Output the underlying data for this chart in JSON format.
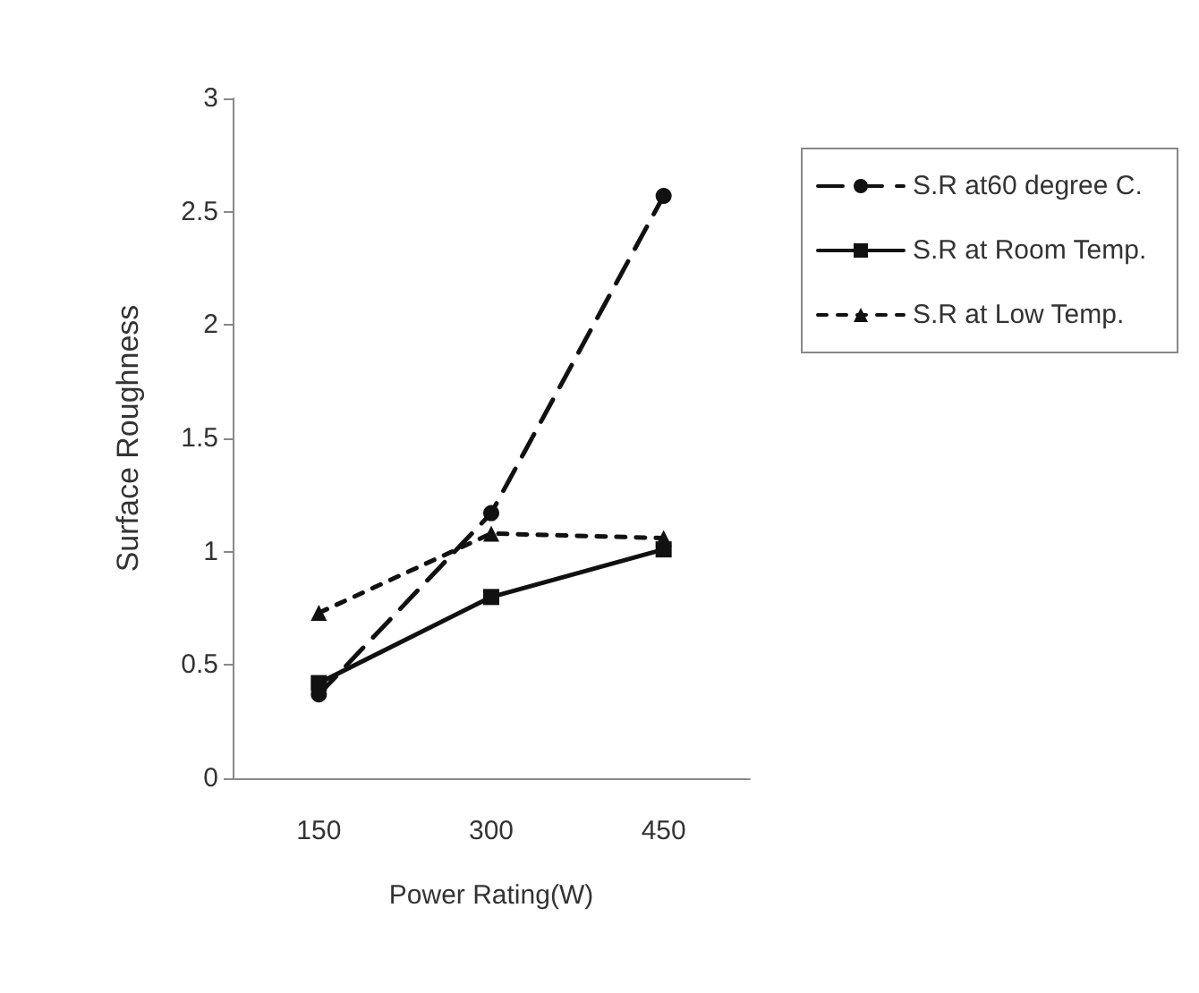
{
  "chart_data": {
    "type": "line",
    "xlabel": "Power Rating(W)",
    "ylabel": "Surface Roughness",
    "categories": [
      "150",
      "300",
      "450"
    ],
    "ylim": [
      0,
      3
    ],
    "yticks": [
      0,
      0.5,
      1,
      1.5,
      2,
      2.5,
      3
    ],
    "grid": false,
    "legend": "right",
    "series": [
      {
        "name": "S.R at60 degree C.",
        "color": "#111111",
        "values": [
          0.37,
          1.17,
          2.57
        ],
        "marker": "circle",
        "line_style": "dashed"
      },
      {
        "name": "S.R at Room Temp.",
        "color": "#111111",
        "values": [
          0.42,
          0.8,
          1.01
        ],
        "marker": "square",
        "line_style": "solid"
      },
      {
        "name": "S.R at Low Temp.",
        "color": "#111111",
        "values": [
          0.73,
          1.08,
          1.06
        ],
        "marker": "triangle",
        "line_style": "dotted"
      }
    ]
  }
}
